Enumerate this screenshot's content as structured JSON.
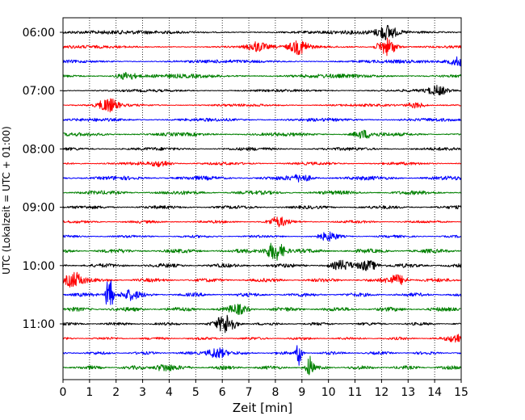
{
  "chart_data": {
    "type": "line",
    "title": "",
    "xlabel": "Zeit  [min]",
    "ylabel": "UTC (Lokalzeit = UTC + 01:00)",
    "xlim": [
      0,
      15
    ],
    "x_ticks": [
      "0",
      "1",
      "2",
      "3",
      "4",
      "5",
      "6",
      "7",
      "8",
      "9",
      "10",
      "11",
      "12",
      "13",
      "14",
      "15"
    ],
    "y_tick_labels": [
      "06:00",
      "07:00",
      "08:00",
      "09:00",
      "10:00",
      "11:00"
    ],
    "row_interval_minutes": 15,
    "rows": 24,
    "start_time": "06:00",
    "grid": {
      "vertical": true,
      "style": "dotted"
    },
    "trace_colors": [
      "#000000",
      "#ff0000",
      "#0000ff",
      "#008000"
    ],
    "events": [
      {
        "row": 0,
        "x": 12.2,
        "amp": 0.9
      },
      {
        "row": 1,
        "x": 7.3,
        "amp": 0.6
      },
      {
        "row": 1,
        "x": 8.9,
        "amp": 0.9
      },
      {
        "row": 1,
        "x": 12.2,
        "amp": 1.2
      },
      {
        "row": 2,
        "x": 14.9,
        "amp": 0.6
      },
      {
        "row": 3,
        "x": 2.4,
        "amp": 0.5
      },
      {
        "row": 4,
        "x": 14.1,
        "amp": 0.6
      },
      {
        "row": 5,
        "x": 1.7,
        "amp": 0.9
      },
      {
        "row": 5,
        "x": 13.3,
        "amp": 0.4
      },
      {
        "row": 7,
        "x": 11.3,
        "amp": 0.5
      },
      {
        "row": 9,
        "x": 3.7,
        "amp": 0.4
      },
      {
        "row": 10,
        "x": 9.0,
        "amp": 0.4
      },
      {
        "row": 13,
        "x": 8.1,
        "amp": 0.6
      },
      {
        "row": 14,
        "x": 10.0,
        "amp": 0.5
      },
      {
        "row": 15,
        "x": 8.0,
        "amp": 1.3
      },
      {
        "row": 16,
        "x": 10.5,
        "amp": 0.5
      },
      {
        "row": 16,
        "x": 11.5,
        "amp": 0.7
      },
      {
        "row": 17,
        "x": 0.4,
        "amp": 1.1
      },
      {
        "row": 17,
        "x": 12.6,
        "amp": 0.7
      },
      {
        "row": 18,
        "x": 1.75,
        "amp": 4.0
      },
      {
        "row": 18,
        "x": 2.5,
        "amp": 0.6
      },
      {
        "row": 19,
        "x": 6.6,
        "amp": 0.5
      },
      {
        "row": 20,
        "x": 6.15,
        "amp": 1.3
      },
      {
        "row": 21,
        "x": 14.9,
        "amp": 0.6
      },
      {
        "row": 22,
        "x": 5.8,
        "amp": 0.8
      },
      {
        "row": 22,
        "x": 8.9,
        "amp": 1.6
      },
      {
        "row": 23,
        "x": 9.3,
        "amp": 1.6
      },
      {
        "row": 23,
        "x": 3.8,
        "amp": 0.5
      }
    ]
  }
}
